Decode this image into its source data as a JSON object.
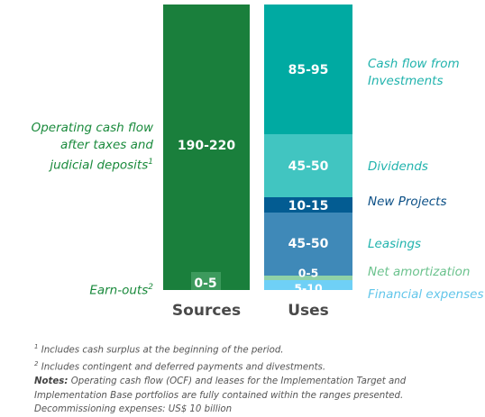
{
  "colors": {
    "sources": "#1a7f3c",
    "earnouts": "#3d9a5d",
    "investments": "#00aaa2",
    "dividends": "#41c5c1",
    "new_projects": "#035c92",
    "leasings": "#3f89b8",
    "net_amortization": "#8fd1a7",
    "financial_expenses": "#6fd0f6",
    "label_green": "#1a8a3c",
    "label_teal": "#21b3ad",
    "label_navy": "#0b4f86",
    "label_lightgreen": "#6bc28d",
    "label_lightblue": "#62c6ea"
  },
  "chart_data": {
    "type": "bar",
    "stacked": true,
    "categories": [
      "Sources",
      "Uses"
    ],
    "unit": "US$ billion",
    "series": [
      {
        "name": "Operating cash flow after taxes and judicial deposits",
        "superscript": "1",
        "category": "Sources",
        "label": "190-220",
        "low": 190,
        "high": 220
      },
      {
        "name": "Earn-outs",
        "superscript": "2",
        "category": "Sources",
        "label": "0-5",
        "low": 0,
        "high": 5
      },
      {
        "name": "Cash flow from Investments",
        "category": "Uses",
        "label": "85-95",
        "low": 85,
        "high": 95
      },
      {
        "name": "Dividends",
        "category": "Uses",
        "label": "45-50",
        "low": 45,
        "high": 50
      },
      {
        "name": "New Projects",
        "category": "Uses",
        "label": "10-15",
        "low": 10,
        "high": 15
      },
      {
        "name": "Leasings",
        "category": "Uses",
        "label": "45-50",
        "low": 45,
        "high": 50
      },
      {
        "name": "Net amortization",
        "category": "Uses",
        "label": "0-5",
        "low": 0,
        "high": 5
      },
      {
        "name": "Financial expenses",
        "category": "Uses",
        "label": "5-10",
        "low": 5,
        "high": 10
      }
    ]
  },
  "labels": {
    "ocf": [
      "Operating cash flow",
      "after taxes and",
      "judicial deposits"
    ],
    "ocf_sup": "1",
    "earnouts": "Earn-outs",
    "earnouts_sup": "2",
    "investments": [
      "Cash flow from",
      "Investments"
    ],
    "dividends": "Dividends",
    "new_projects": "New Projects",
    "leasings": "Leasings",
    "net_amortization": "Net amortization",
    "financial_expenses": "Financial expenses"
  },
  "footnotes": {
    "note1_sup": "1",
    "note1": "Includes cash surplus at the beginning of the period.",
    "note2_sup": "2",
    "note2": "Includes contingent and deferred payments and divestments.",
    "notes_label": "Notes:",
    "notes_line1": "Operating cash flow (OCF) and leases for the Implementation Target and",
    "notes_line2": "Implementation Base portfolios are fully contained within the ranges presented.",
    "decom": "Decommissioning expenses: US$ 10 billion"
  }
}
